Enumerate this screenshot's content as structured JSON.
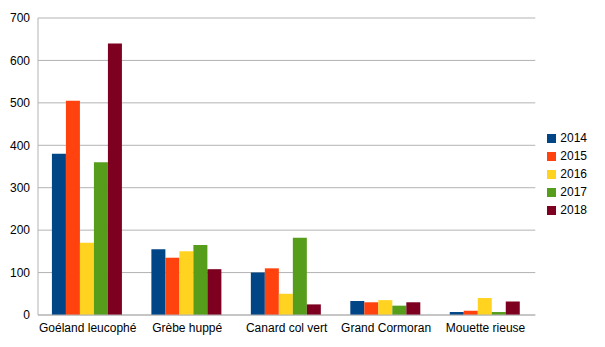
{
  "chart_data": {
    "type": "bar",
    "categories": [
      "Goéland leucophé",
      "Grèbe huppé",
      "Canard col vert",
      "Grand Cormoran",
      "Mouette rieuse"
    ],
    "series": [
      {
        "name": "2014",
        "color": "#004586",
        "values": [
          380,
          155,
          100,
          33,
          7
        ]
      },
      {
        "name": "2015",
        "color": "#ff420e",
        "values": [
          505,
          135,
          110,
          30,
          10
        ]
      },
      {
        "name": "2016",
        "color": "#ffd320",
        "values": [
          170,
          150,
          50,
          35,
          40
        ]
      },
      {
        "name": "2017",
        "color": "#579d1c",
        "values": [
          360,
          165,
          182,
          22,
          7
        ]
      },
      {
        "name": "2018",
        "color": "#7e0021",
        "values": [
          640,
          108,
          25,
          30,
          32
        ]
      }
    ],
    "ylim": [
      0,
      700
    ],
    "yticks": [
      0,
      100,
      200,
      300,
      400,
      500,
      600,
      700
    ],
    "grid": true,
    "legend": "right"
  }
}
